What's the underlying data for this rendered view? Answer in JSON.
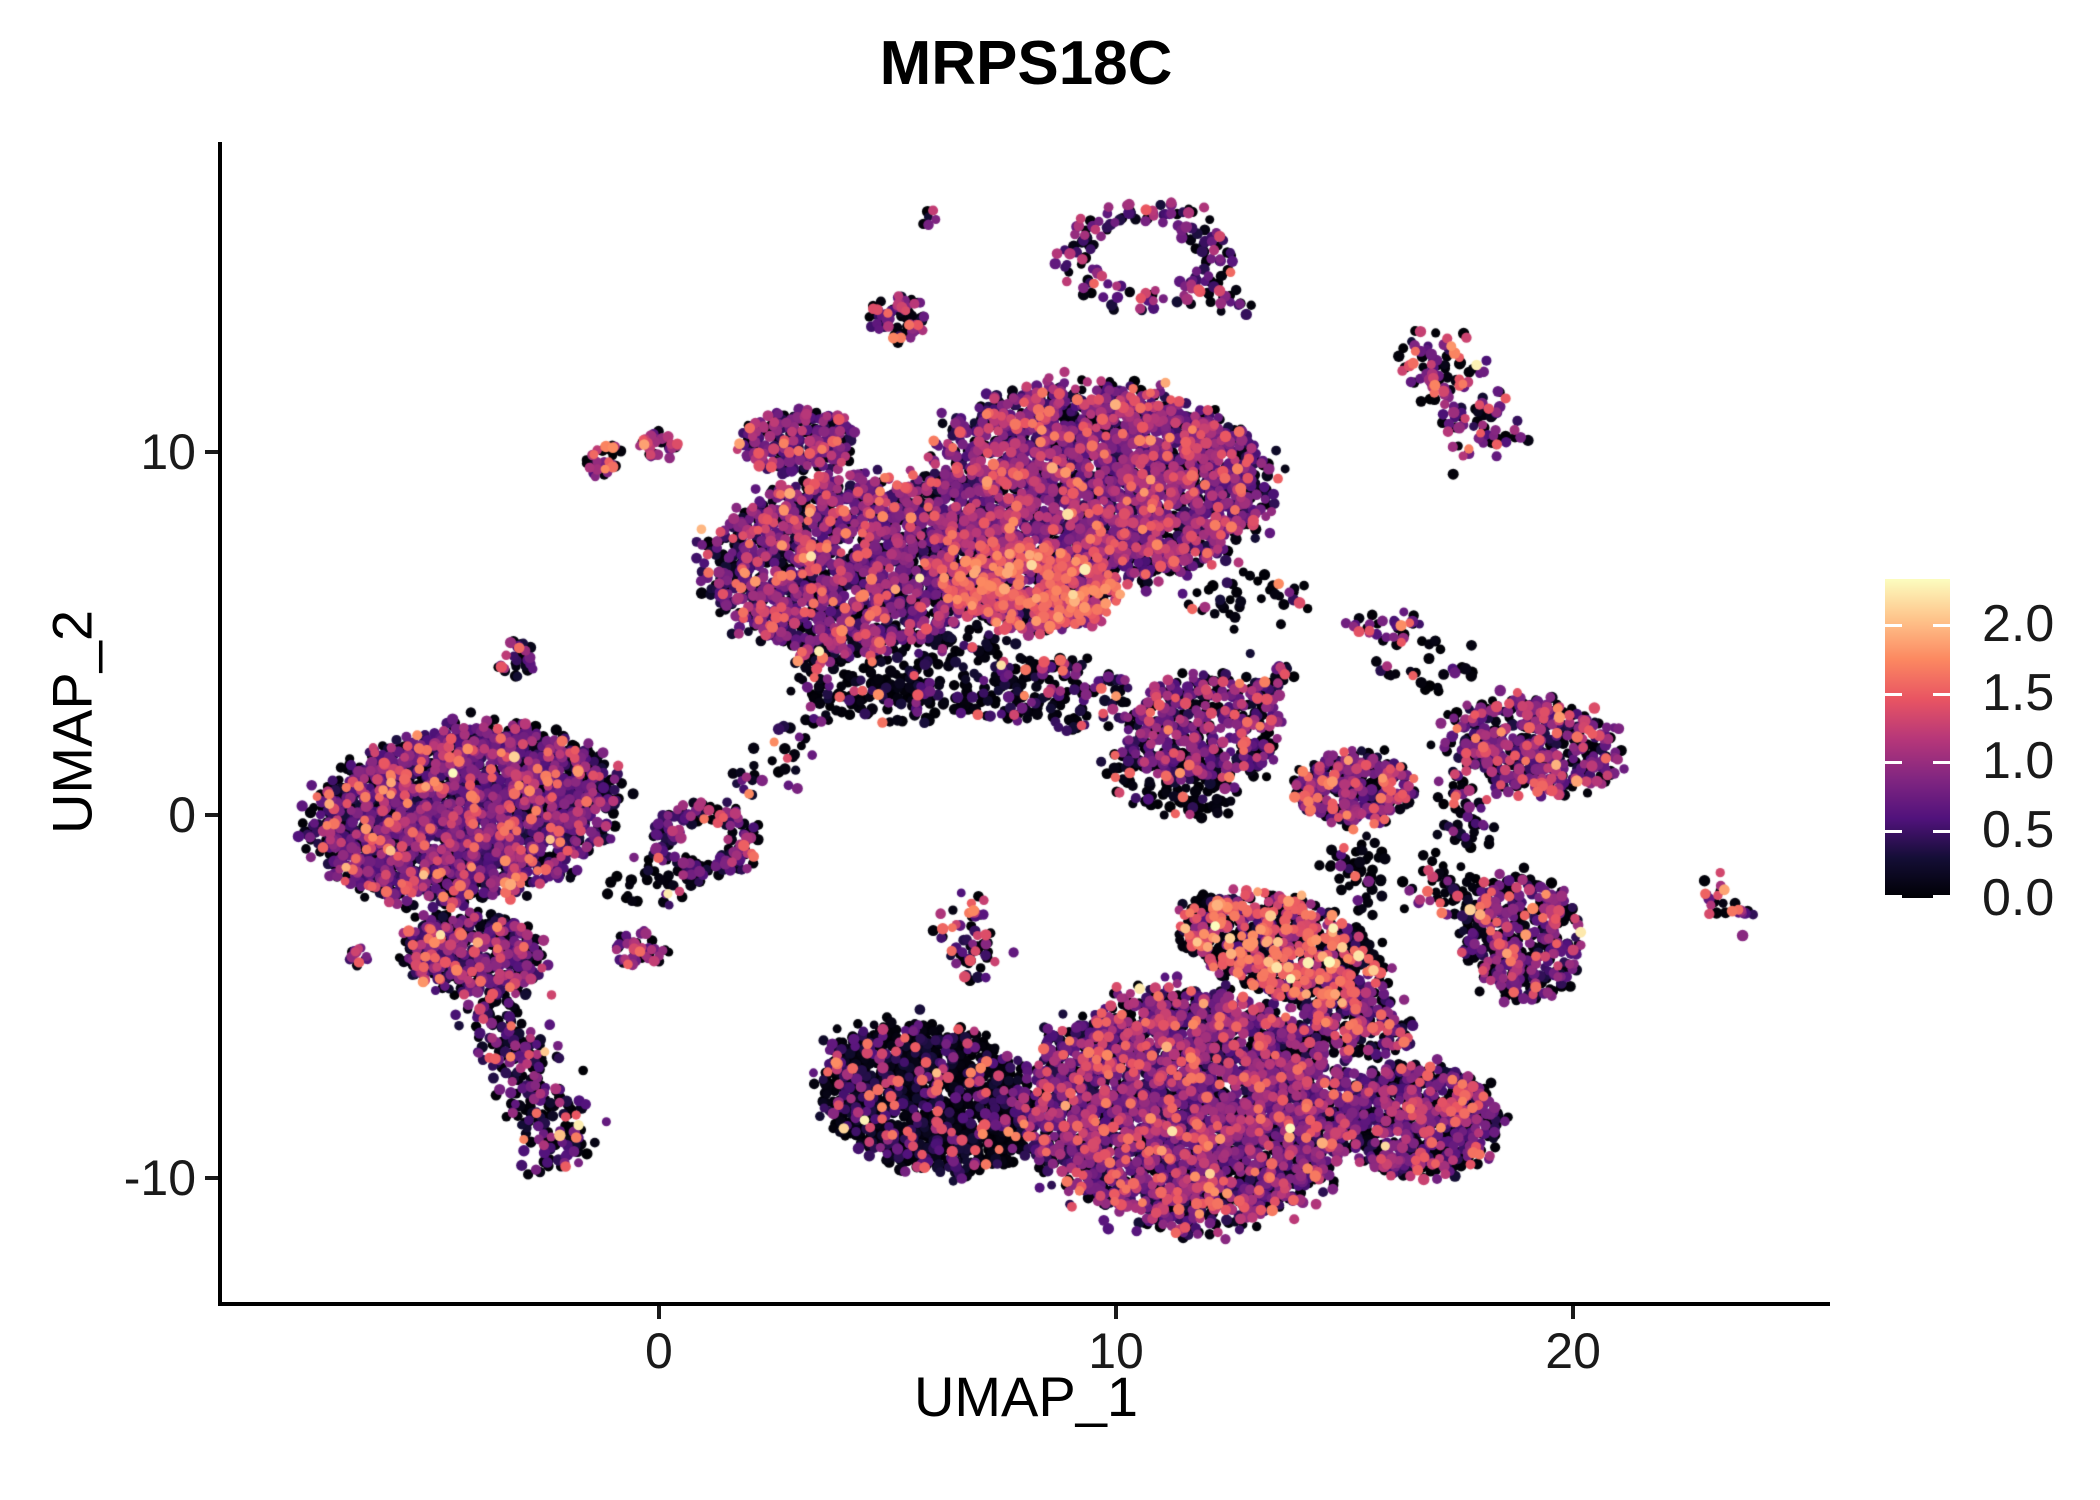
{
  "title": "MRPS18C",
  "axes": {
    "x": {
      "label": "UMAP_1",
      "ticks": [
        0,
        10,
        20
      ]
    },
    "y": {
      "label": "UMAP_2",
      "ticks": [
        -10,
        0,
        10
      ]
    }
  },
  "legend": {
    "tick_labels": [
      "2.0",
      "1.5",
      "1.0",
      "0.5",
      "0.0"
    ],
    "tick_values": [
      2.0,
      1.5,
      1.0,
      0.5,
      0.0
    ],
    "bar_min_value": 0.0,
    "bar_max_value": 2.33
  },
  "colors": {
    "background": "#ffffff",
    "axis": "#000000",
    "tick_text": "#1a1a1a",
    "magma_stops": [
      [
        0.0,
        "#000004"
      ],
      [
        0.125,
        "#140e36"
      ],
      [
        0.25,
        "#51127c"
      ],
      [
        0.375,
        "#822681"
      ],
      [
        0.5,
        "#b73779"
      ],
      [
        0.625,
        "#e95562"
      ],
      [
        0.75,
        "#fc8961"
      ],
      [
        0.875,
        "#fec48b"
      ],
      [
        1.0,
        "#fcfdbf"
      ]
    ]
  },
  "chart_data": {
    "type": "scatter",
    "title": "MRPS18C",
    "xlabel": "UMAP_1",
    "ylabel": "UMAP_2",
    "xlim": [
      -9.56,
      25.62
    ],
    "ylim": [
      -13.42,
      18.54
    ],
    "x_ticks": [
      0,
      10,
      20
    ],
    "y_ticks": [
      -10,
      0,
      10
    ],
    "grid": false,
    "legend_position": "right",
    "color_scale": {
      "name": "magma",
      "domain": [
        0,
        2.33
      ],
      "feature": "MRPS18C expression"
    },
    "point_radius_px": [
      4.4,
      5.8
    ],
    "rng_seed": 42,
    "clusters": [
      {
        "name": "top-dot-pair",
        "shape": "blob",
        "x": 5.9,
        "y": 16.4,
        "rx": 0.22,
        "ry": 0.3,
        "rot": 0,
        "n": 6,
        "e": {
          "p0": 0.3,
          "mu": 0.8
        }
      },
      {
        "name": "top-ring-loop",
        "shape": "ring",
        "x": 10.7,
        "y": 15.4,
        "rx": 1.85,
        "ry": 1.5,
        "rot": 0,
        "hollow": 0.55,
        "n": 150,
        "e": {
          "p0": 0.35,
          "mu": 0.7,
          "phi": 0.1
        }
      },
      {
        "name": "ring-tail",
        "shape": "chain",
        "x": 11.6,
        "y": 14.8,
        "x2": 12.9,
        "y2": 13.95,
        "w": 0.22,
        "n": 28,
        "e": {
          "p0": 0.4,
          "mu": 0.6,
          "phi": 0.08
        }
      },
      {
        "name": "blob-above-main",
        "shape": "blob",
        "x": 5.2,
        "y": 13.7,
        "rx": 0.6,
        "ry": 0.65,
        "rot": 0,
        "n": 75,
        "e": {
          "p0": 0.3,
          "mu": 0.75,
          "phi": 0.12
        }
      },
      {
        "name": "topright-elongated",
        "shape": "chain",
        "x": 16.7,
        "y": 12.9,
        "x2": 18.3,
        "y2": 10.0,
        "w": 0.45,
        "n": 140,
        "e": {
          "p0": 0.3,
          "mu": 0.8,
          "phi": 0.14
        }
      },
      {
        "name": "small-blob-a",
        "shape": "blob",
        "x": -1.2,
        "y": 9.75,
        "rx": 0.42,
        "ry": 0.45,
        "rot": 0,
        "n": 32,
        "e": {
          "p0": 0.25,
          "mu": 0.85,
          "phi": 0.12
        }
      },
      {
        "name": "small-blob-b",
        "shape": "blob",
        "x": 0.0,
        "y": 10.2,
        "rx": 0.45,
        "ry": 0.35,
        "rot": 0,
        "n": 34,
        "e": {
          "p0": 0.25,
          "mu": 0.85,
          "phi": 0.15,
          "ptop": 0.02
        }
      },
      {
        "name": "diag-arm-orange",
        "shape": "chain",
        "x": 0.7,
        "y": 6.7,
        "x2": 3.1,
        "y2": 9.05,
        "w": 0.3,
        "n": 48,
        "e": {
          "p0": 0.35,
          "mu": 0.6,
          "phi": 0.15,
          "ptop": 0.015
        }
      },
      {
        "name": "topcomplex-right-lobe",
        "shape": "blob",
        "x": 9.7,
        "y": 9.2,
        "rx": 3.65,
        "ry": 2.65,
        "rot": -8,
        "n": 2600,
        "e": {
          "p0": 0.22,
          "mu": 0.75,
          "sd": 0.33,
          "phi": 0.07
        }
      },
      {
        "name": "topcomplex-left-lobe",
        "shape": "blob",
        "x": 4.2,
        "y": 6.9,
        "rx": 2.95,
        "ry": 2.45,
        "rot": 10,
        "n": 1700,
        "e": {
          "p0": 0.26,
          "mu": 0.72,
          "sd": 0.33,
          "phi": 0.08
        }
      },
      {
        "name": "topcomplex-pink-mid",
        "shape": "blob",
        "x": 8.1,
        "y": 6.2,
        "rx": 1.9,
        "ry": 1.15,
        "rot": -5,
        "n": 750,
        "e": {
          "p0": 0.34,
          "mu": 0.95,
          "sd": 0.45,
          "phi": 0.22,
          "hmu": 1.5,
          "ptop": 0.004
        }
      },
      {
        "name": "topcomplex-topleft-ext",
        "shape": "blob",
        "x": 3.0,
        "y": 10.3,
        "rx": 1.25,
        "ry": 0.85,
        "rot": 0,
        "n": 260,
        "e": {
          "p0": 0.25,
          "mu": 0.7,
          "phi": 0.08
        }
      },
      {
        "name": "topcomplex-under-scatter",
        "shape": "blob",
        "x": 5.6,
        "y": 3.9,
        "rx": 2.6,
        "ry": 1.4,
        "rot": 0,
        "n": 300,
        "e": {
          "p0": 0.62,
          "mu": 0.4,
          "phi": 0.06
        }
      },
      {
        "name": "topcomplex-under-scatter2",
        "shape": "blob",
        "x": 8.8,
        "y": 3.3,
        "rx": 1.6,
        "ry": 1.0,
        "rot": 0,
        "n": 150,
        "e": {
          "p0": 0.6,
          "mu": 0.45,
          "phi": 0.08
        }
      },
      {
        "name": "left-main",
        "shape": "blob",
        "x": -4.3,
        "y": 0.0,
        "rx": 3.35,
        "ry": 2.3,
        "rot": 14,
        "n": 2600,
        "e": {
          "p0": 0.33,
          "mu": 0.62,
          "sd": 0.3,
          "phi": 0.07
        }
      },
      {
        "name": "left-neck",
        "shape": "blob",
        "x": -4.1,
        "y": -3.8,
        "rx": 1.55,
        "ry": 1.1,
        "rot": -10,
        "n": 520,
        "e": {
          "p0": 0.33,
          "mu": 0.65,
          "phi": 0.08
        }
      },
      {
        "name": "left-tail",
        "shape": "chain",
        "x": -3.6,
        "y": -5.0,
        "x2": -2.05,
        "y2": -9.6,
        "w": 0.42,
        "n": 270,
        "e": {
          "p0": 0.4,
          "mu": 0.55,
          "phi": 0.06
        }
      },
      {
        "name": "left-tiny-blob",
        "shape": "blob",
        "x": -6.6,
        "y": -3.9,
        "rx": 0.3,
        "ry": 0.25,
        "rot": 0,
        "n": 14,
        "e": {
          "p0": 0.3,
          "mu": 0.8,
          "phi": 0.15
        }
      },
      {
        "name": "hook-swirl",
        "shape": "ring",
        "x": 1.0,
        "y": -0.7,
        "rx": 1.15,
        "ry": 1.0,
        "rot": 0,
        "hollow": 0.45,
        "n": 175,
        "e": {
          "p0": 0.32,
          "mu": 0.6,
          "phi": 0.1
        }
      },
      {
        "name": "below-hook-blob",
        "shape": "blob",
        "x": -0.4,
        "y": -3.7,
        "rx": 0.62,
        "ry": 0.48,
        "rot": 0,
        "n": 48,
        "e": {
          "p0": 0.3,
          "mu": 0.8,
          "phi": 0.15
        }
      },
      {
        "name": "small-reddot-cluster",
        "shape": "blob",
        "x": -3.1,
        "y": 4.3,
        "rx": 0.42,
        "ry": 0.55,
        "rot": 0,
        "n": 30,
        "e": {
          "p0": 0.45,
          "mu": 0.55,
          "phi": 0.08
        }
      },
      {
        "name": "long-diag-chain",
        "shape": "chain",
        "x": 1.7,
        "y": 0.1,
        "x2": 4.2,
        "y2": 4.2,
        "w": 0.3,
        "n": 55,
        "e": {
          "p0": 0.45,
          "mu": 0.55,
          "phi": 0.1
        }
      },
      {
        "name": "bird-cluster",
        "shape": "blob",
        "x": 11.9,
        "y": 2.3,
        "rx": 1.7,
        "ry": 1.55,
        "rot": 0,
        "n": 430,
        "e": {
          "p0": 0.3,
          "mu": 0.7,
          "phi": 0.1
        }
      },
      {
        "name": "bird-beak",
        "shape": "chain",
        "x": 12.9,
        "y": 3.2,
        "x2": 13.8,
        "y2": 3.9,
        "w": 0.3,
        "n": 40,
        "e": {
          "p0": 0.35,
          "mu": 0.7,
          "phi": 0.12
        }
      },
      {
        "name": "bird-under-scatter",
        "shape": "blob",
        "x": 11.2,
        "y": 0.9,
        "rx": 1.5,
        "ry": 0.9,
        "rot": -20,
        "n": 130,
        "e": {
          "p0": 0.65,
          "mu": 0.4,
          "phi": 0.1
        }
      },
      {
        "name": "round-blob-mid",
        "shape": "blob",
        "x": 15.2,
        "y": 0.7,
        "rx": 1.3,
        "ry": 1.0,
        "rot": 0,
        "n": 340,
        "e": {
          "p0": 0.28,
          "mu": 0.75,
          "phi": 0.12
        }
      },
      {
        "name": "round-blob-trail",
        "shape": "chain",
        "x": 15.1,
        "y": -0.6,
        "x2": 15.6,
        "y2": -2.5,
        "w": 0.3,
        "n": 50,
        "e": {
          "p0": 0.7,
          "mu": 0.4,
          "phi": 0.06
        }
      },
      {
        "name": "sparse-pink-blobs",
        "shape": "blob",
        "x": 15.9,
        "y": 5.2,
        "rx": 0.8,
        "ry": 0.45,
        "rot": 0,
        "n": 30,
        "e": {
          "p0": 0.4,
          "mu": 0.7,
          "phi": 0.2
        }
      },
      {
        "name": "fish-cluster",
        "shape": "blob",
        "x": 19.1,
        "y": 1.9,
        "rx": 2.0,
        "ry": 1.35,
        "rot": -12,
        "n": 500,
        "e": {
          "p0": 0.3,
          "mu": 0.72,
          "phi": 0.1
        }
      },
      {
        "name": "fish-tail-chain",
        "shape": "chain",
        "x": 17.5,
        "y": 1.2,
        "x2": 17.8,
        "y2": -0.8,
        "w": 0.3,
        "n": 55,
        "e": {
          "p0": 0.6,
          "mu": 0.45,
          "phi": 0.12
        }
      },
      {
        "name": "arrow-cluster",
        "shape": "blob",
        "x": 18.9,
        "y": -3.4,
        "rx": 1.3,
        "ry": 1.7,
        "rot": 0,
        "n": 400,
        "e": {
          "p0": 0.34,
          "mu": 0.7,
          "phi": 0.1,
          "ptop": 0.003
        }
      },
      {
        "name": "arrow-black-chain",
        "shape": "chain",
        "x": 16.5,
        "y": -1.6,
        "x2": 18.1,
        "y2": -2.6,
        "w": 0.35,
        "n": 75,
        "e": {
          "p0": 0.7,
          "mu": 0.35,
          "phi": 0.12
        }
      },
      {
        "name": "far-right-sliver",
        "shape": "chain",
        "x": 22.8,
        "y": -1.9,
        "x2": 23.75,
        "y2": -3.0,
        "w": 0.22,
        "n": 26,
        "e": {
          "p0": 0.25,
          "mu": 0.95,
          "phi": 0.25
        }
      },
      {
        "name": "vertical-blob-chain",
        "shape": "chain",
        "x": 6.7,
        "y": -2.1,
        "x2": 7.0,
        "y2": -4.5,
        "w": 0.3,
        "n": 60,
        "e": {
          "p0": 0.4,
          "mu": 0.7,
          "phi": 0.18,
          "ptop": 0.01
        }
      },
      {
        "name": "bottom-black-wing",
        "shape": "blob",
        "x": 5.9,
        "y": -7.8,
        "rx": 2.5,
        "ry": 1.9,
        "rot": -28,
        "n": 1350,
        "e": {
          "p0": 0.64,
          "mu": 0.3,
          "phi": 0.07,
          "hmu": 1.4,
          "ptop": 0.004
        }
      },
      {
        "name": "bottom-main-mass",
        "shape": "blob",
        "x": 11.6,
        "y": -8.1,
        "rx": 3.5,
        "ry": 3.2,
        "rot": -8,
        "n": 3300,
        "e": {
          "p0": 0.3,
          "mu": 0.7,
          "sd": 0.32,
          "phi": 0.08
        }
      },
      {
        "name": "bottom-right-lobe",
        "shape": "blob",
        "x": 16.6,
        "y": -8.4,
        "rx": 1.75,
        "ry": 1.55,
        "rot": 0,
        "n": 720,
        "e": {
          "p0": 0.36,
          "mu": 0.65,
          "phi": 0.07
        }
      },
      {
        "name": "bottom-red-band",
        "shape": "blob",
        "x": 13.6,
        "y": -3.6,
        "rx": 2.3,
        "ry": 1.3,
        "rot": -22,
        "n": 850,
        "e": {
          "p0": 0.45,
          "mu": 0.8,
          "sd": 0.5,
          "phi": 0.3,
          "hmu": 1.5,
          "hsd": 0.22,
          "ptop": 0.012
        }
      },
      {
        "name": "band-bridge",
        "shape": "blob",
        "x": 15.2,
        "y": -5.6,
        "rx": 1.3,
        "ry": 0.9,
        "rot": -30,
        "n": 250,
        "e": {
          "p0": 0.45,
          "mu": 0.7,
          "phi": 0.15
        }
      },
      {
        "name": "noise-mid-right",
        "shape": "blob",
        "x": 13.0,
        "y": 5.8,
        "rx": 1.5,
        "ry": 0.9,
        "rot": 0,
        "n": 40,
        "e": {
          "p0": 0.75,
          "mu": 0.4,
          "phi": 0.08
        }
      },
      {
        "name": "noise-hook-left",
        "shape": "blob",
        "x": 0.0,
        "y": -1.8,
        "rx": 1.3,
        "ry": 0.7,
        "rot": 0,
        "n": 40,
        "e": {
          "p0": 0.7,
          "mu": 0.4,
          "phi": 0.05
        }
      },
      {
        "name": "noise-fish-top",
        "shape": "blob",
        "x": 16.8,
        "y": 4.2,
        "rx": 1.1,
        "ry": 0.8,
        "rot": 0,
        "n": 30,
        "e": {
          "p0": 0.75,
          "mu": 0.5,
          "phi": 0.1
        }
      }
    ]
  }
}
